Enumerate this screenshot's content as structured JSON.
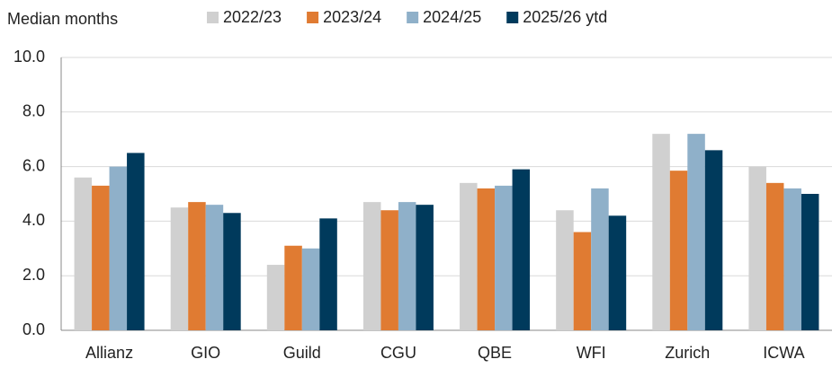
{
  "chart_data": {
    "type": "bar",
    "y_label": "Median months",
    "categories": [
      "Allianz",
      "GIO",
      "Guild",
      "CGU",
      "QBE",
      "WFI",
      "Zurich",
      "ICWA"
    ],
    "series": [
      {
        "name": "2022/23",
        "color": "#d0d0d0",
        "values": [
          5.6,
          4.5,
          2.4,
          4.7,
          5.4,
          4.4,
          7.2,
          6.0
        ]
      },
      {
        "name": "2023/24",
        "color": "#e07b32",
        "values": [
          5.3,
          4.7,
          3.1,
          4.4,
          5.2,
          3.6,
          5.85,
          5.4
        ]
      },
      {
        "name": "2024/25",
        "color": "#8fb0c9",
        "values": [
          6.0,
          4.6,
          3.0,
          4.7,
          5.3,
          5.2,
          7.2,
          5.2
        ]
      },
      {
        "name": "2025/26 ytd",
        "color": "#003a5c",
        "values": [
          6.5,
          4.3,
          4.1,
          4.6,
          5.9,
          4.2,
          6.6,
          5.0
        ]
      }
    ],
    "ylim": [
      0,
      10
    ],
    "yticks": [
      {
        "value": 0,
        "label": "0.0"
      },
      {
        "value": 2,
        "label": "2.0"
      },
      {
        "value": 4,
        "label": "4.0"
      },
      {
        "value": 6,
        "label": "6.0"
      },
      {
        "value": 8,
        "label": "8.0"
      },
      {
        "value": 10,
        "label": "10.0"
      }
    ],
    "grid": true,
    "legend": "top"
  }
}
